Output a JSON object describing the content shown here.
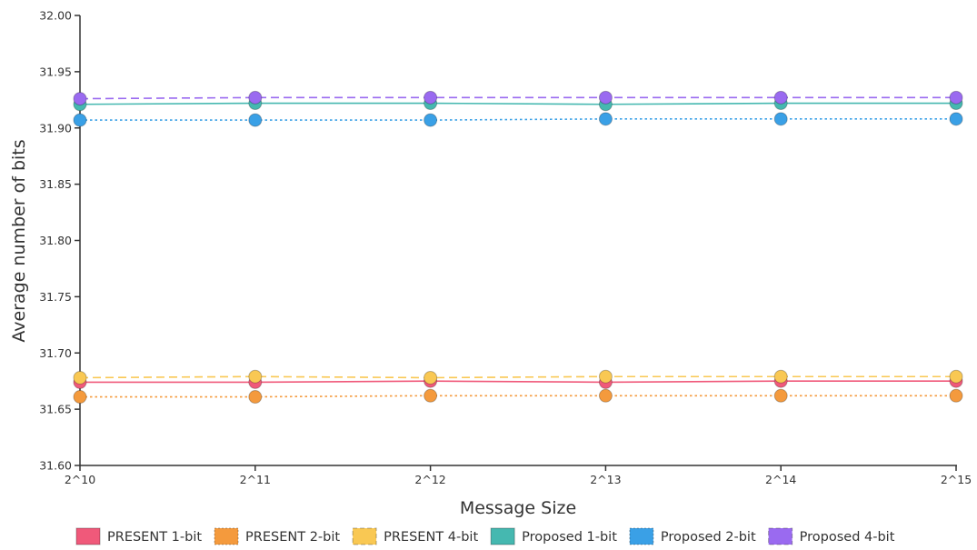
{
  "chart_data": {
    "type": "line",
    "title": "",
    "xlabel": "Message Size",
    "ylabel": "Average number of bits",
    "categories": [
      "2^10",
      "2^11",
      "2^12",
      "2^13",
      "2^14",
      "2^15"
    ],
    "ylim": [
      31.6,
      32.0
    ],
    "yticks": [
      "31.60",
      "31.65",
      "31.70",
      "31.75",
      "31.80",
      "31.85",
      "31.90",
      "31.95",
      "32.00"
    ],
    "grid": false,
    "legend_position": "bottom",
    "series": [
      {
        "name": "PRESENT 1-bit",
        "color": "#f0597a",
        "dash": "solid",
        "values": [
          31.674,
          31.674,
          31.675,
          31.674,
          31.675,
          31.675
        ]
      },
      {
        "name": "PRESENT 2-bit",
        "color": "#f49a3d",
        "dash": "dotted",
        "values": [
          31.661,
          31.661,
          31.662,
          31.662,
          31.662,
          31.662
        ]
      },
      {
        "name": "PRESENT 4-bit",
        "color": "#f9c853",
        "dash": "dashed",
        "values": [
          31.678,
          31.679,
          31.678,
          31.679,
          31.679,
          31.679
        ]
      },
      {
        "name": "Proposed 1-bit",
        "color": "#45b8b0",
        "dash": "solid",
        "values": [
          31.921,
          31.922,
          31.922,
          31.921,
          31.922,
          31.922
        ]
      },
      {
        "name": "Proposed 2-bit",
        "color": "#3aa0e6",
        "dash": "dotted",
        "values": [
          31.907,
          31.907,
          31.907,
          31.908,
          31.908,
          31.908
        ]
      },
      {
        "name": "Proposed 4-bit",
        "color": "#9a6af0",
        "dash": "dashed",
        "values": [
          31.926,
          31.927,
          31.927,
          31.927,
          31.927,
          31.927
        ]
      }
    ]
  }
}
